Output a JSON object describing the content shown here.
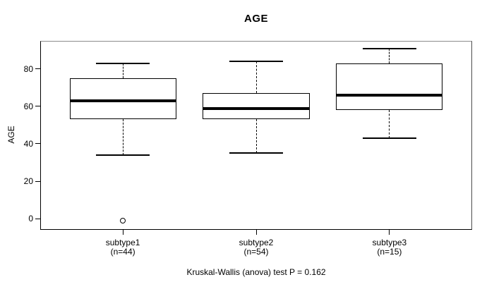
{
  "figure": {
    "title": "AGE",
    "y_axis_label": "AGE",
    "footnote": "Kruskal-Wallis (anova) test P = 0.162"
  },
  "chart_data": {
    "type": "boxplot",
    "title": "AGE",
    "xlabel": "",
    "ylabel": "AGE",
    "ylim": [
      -6,
      95
    ],
    "yticks": [
      0,
      20,
      40,
      60,
      80
    ],
    "grid": false,
    "legend": "none",
    "annotation": "Kruskal-Wallis (anova) test P = 0.162",
    "groups": [
      {
        "label": "subtype1",
        "count_label": "(n=44)",
        "n": 44,
        "stats": {
          "whisker_low": 34,
          "q1": 53,
          "median": 63,
          "q3": 75,
          "whisker_high": 83
        },
        "outliers": [
          -1
        ]
      },
      {
        "label": "subtype2",
        "count_label": "(n=54)",
        "n": 54,
        "stats": {
          "whisker_low": 35,
          "q1": 53,
          "median": 59,
          "q3": 67,
          "whisker_high": 84
        },
        "outliers": []
      },
      {
        "label": "subtype3",
        "count_label": "(n=15)",
        "n": 15,
        "stats": {
          "whisker_low": 43,
          "q1": 58,
          "median": 66,
          "q3": 83,
          "whisker_high": 91
        },
        "outliers": []
      }
    ],
    "colors": {
      "background": "#ffffff",
      "stroke": "#000000",
      "box_fill": "#ffffff",
      "frame_top": "#8c8c8c",
      "frame_right": "#4d4d4d",
      "text": "#000000"
    }
  }
}
